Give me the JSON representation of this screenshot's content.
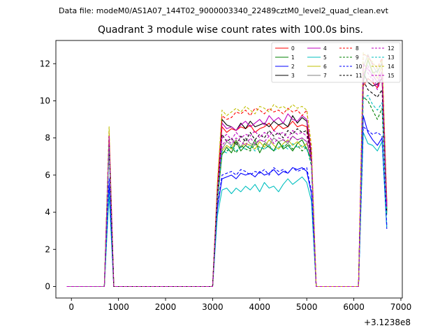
{
  "figure": {
    "suptitle": "Data file: modeM0/AS1A07_144T02_9000003340_22489cztM0_level2_quad_clean.evt"
  },
  "chart_data": {
    "type": "line",
    "title": "Quadrant 3 module wise count rates with 100.0s bins.",
    "xlabel": "",
    "ylabel": "",
    "x_offset_label": "+3.1238e8",
    "xlim": [
      -330,
      7030
    ],
    "ylim": [
      -0.62,
      13.25
    ],
    "xticks": [
      0,
      1000,
      2000,
      3000,
      4000,
      5000,
      6000,
      7000
    ],
    "xtick_labels": [
      "0",
      "1000",
      "2000",
      "3000",
      "4000",
      "5000",
      "6000",
      "7000"
    ],
    "yticks": [
      0,
      2,
      4,
      6,
      8,
      10,
      12
    ],
    "ytick_labels": [
      "0",
      "2",
      "4",
      "6",
      "8",
      "10",
      "12"
    ],
    "grid": false,
    "legend_position": "top-right",
    "legend_columns": 4,
    "x": [
      -100,
      0,
      100,
      200,
      300,
      400,
      500,
      600,
      700,
      800,
      900,
      1000,
      1100,
      1200,
      1300,
      1400,
      1500,
      1600,
      1700,
      1800,
      1900,
      2000,
      2100,
      2200,
      2300,
      2400,
      2500,
      2600,
      2700,
      2800,
      2900,
      3000,
      3100,
      3200,
      3300,
      3400,
      3500,
      3600,
      3700,
      3800,
      3900,
      4000,
      4100,
      4200,
      4300,
      4400,
      4500,
      4600,
      4700,
      4800,
      4900,
      5000,
      5100,
      5200,
      5300,
      5400,
      5500,
      5600,
      5700,
      5800,
      5900,
      6000,
      6100,
      6200,
      6300,
      6400,
      6500,
      6600,
      6700
    ],
    "series": [
      {
        "name": "0",
        "color": "#ff0000",
        "dash": "solid",
        "values": [
          0,
          0,
          0,
          0,
          0,
          0,
          0,
          0,
          0,
          8.0,
          0,
          0,
          0,
          0,
          0,
          0,
          0,
          0,
          0,
          0,
          0,
          0,
          0,
          0,
          0,
          0,
          0,
          0,
          0,
          0,
          0,
          0,
          5.0,
          8.6,
          8.3,
          8.5,
          8.4,
          8.6,
          8.5,
          8.7,
          8.3,
          8.5,
          8.6,
          8.8,
          8.4,
          8.7,
          8.5,
          8.6,
          8.9,
          8.6,
          8.7,
          8.6,
          7.0,
          0,
          0,
          0,
          0,
          0,
          0,
          0,
          0,
          0,
          0,
          10.8,
          11.2,
          11.0,
          10.7,
          11.3,
          4.0
        ]
      },
      {
        "name": "1",
        "color": "#008000",
        "dash": "solid",
        "values": [
          0,
          0,
          0,
          0,
          0,
          0,
          0,
          0,
          0,
          7.8,
          0,
          0,
          0,
          0,
          0,
          0,
          0,
          0,
          0,
          0,
          0,
          0,
          0,
          0,
          0,
          0,
          0,
          0,
          0,
          0,
          0,
          0,
          4.6,
          7.1,
          7.5,
          7.2,
          7.8,
          7.3,
          7.6,
          7.4,
          7.9,
          7.2,
          7.7,
          7.5,
          7.3,
          7.8,
          7.4,
          7.6,
          7.3,
          7.7,
          7.9,
          7.4,
          6.8,
          0,
          0,
          0,
          0,
          0,
          0,
          0,
          0,
          0,
          0,
          11.0,
          12.2,
          11.5,
          11.6,
          12.0,
          4.2
        ]
      },
      {
        "name": "2",
        "color": "#0000ff",
        "dash": "solid",
        "values": [
          0,
          0,
          0,
          0,
          0,
          0,
          0,
          0,
          0,
          5.5,
          0,
          0,
          0,
          0,
          0,
          0,
          0,
          0,
          0,
          0,
          0,
          0,
          0,
          0,
          0,
          0,
          0,
          0,
          0,
          0,
          0,
          0,
          4.2,
          5.8,
          5.9,
          6.0,
          5.8,
          6.1,
          6.0,
          6.1,
          5.9,
          6.2,
          6.0,
          6.1,
          6.3,
          6.0,
          6.2,
          6.1,
          6.4,
          6.3,
          6.4,
          6.2,
          5.0,
          0,
          0,
          0,
          0,
          0,
          0,
          0,
          0,
          0,
          0,
          9.2,
          8.3,
          7.9,
          7.6,
          8.0,
          3.1
        ]
      },
      {
        "name": "3",
        "color": "#000000",
        "dash": "solid",
        "values": [
          0,
          0,
          0,
          0,
          0,
          0,
          0,
          0,
          0,
          7.9,
          0,
          0,
          0,
          0,
          0,
          0,
          0,
          0,
          0,
          0,
          0,
          0,
          0,
          0,
          0,
          0,
          0,
          0,
          0,
          0,
          0,
          0,
          5.2,
          9.0,
          8.7,
          8.6,
          8.4,
          8.8,
          8.5,
          8.9,
          8.6,
          8.7,
          8.8,
          8.6,
          8.9,
          8.7,
          8.8,
          8.6,
          9.2,
          8.8,
          9.1,
          8.9,
          7.0,
          0,
          0,
          0,
          0,
          0,
          0,
          0,
          0,
          0,
          0,
          11.5,
          11.0,
          10.8,
          10.9,
          11.2,
          4.3
        ]
      },
      {
        "name": "4",
        "color": "#bf00bf",
        "dash": "solid",
        "values": [
          0,
          0,
          0,
          0,
          0,
          0,
          0,
          0,
          0,
          8.1,
          0,
          0,
          0,
          0,
          0,
          0,
          0,
          0,
          0,
          0,
          0,
          0,
          0,
          0,
          0,
          0,
          0,
          0,
          0,
          0,
          0,
          0,
          5.3,
          8.8,
          8.5,
          8.6,
          8.4,
          8.7,
          8.9,
          8.6,
          8.8,
          9.0,
          8.7,
          9.2,
          8.9,
          9.1,
          8.8,
          9.3,
          9.0,
          8.9,
          9.2,
          9.0,
          7.2,
          0,
          0,
          0,
          0,
          0,
          0,
          0,
          0,
          0,
          0,
          12.0,
          11.7,
          11.4,
          11.0,
          11.6,
          4.5
        ]
      },
      {
        "name": "5",
        "color": "#00bfbf",
        "dash": "solid",
        "values": [
          0,
          0,
          0,
          0,
          0,
          0,
          0,
          0,
          0,
          5.0,
          0,
          0,
          0,
          0,
          0,
          0,
          0,
          0,
          0,
          0,
          0,
          0,
          0,
          0,
          0,
          0,
          0,
          0,
          0,
          0,
          0,
          0,
          3.8,
          5.2,
          5.3,
          5.0,
          5.3,
          5.1,
          5.4,
          5.2,
          5.5,
          5.1,
          5.6,
          5.3,
          5.4,
          5.1,
          5.5,
          5.8,
          5.5,
          5.7,
          5.9,
          5.6,
          4.6,
          0,
          0,
          0,
          0,
          0,
          0,
          0,
          0,
          0,
          0,
          8.3,
          7.7,
          7.6,
          7.3,
          7.8,
          3.2
        ]
      },
      {
        "name": "6",
        "color": "#bfbf00",
        "dash": "solid",
        "values": [
          0,
          0,
          0,
          0,
          0,
          0,
          0,
          0,
          0,
          8.2,
          0,
          0,
          0,
          0,
          0,
          0,
          0,
          0,
          0,
          0,
          0,
          0,
          0,
          0,
          0,
          0,
          0,
          0,
          0,
          0,
          0,
          0,
          4.9,
          7.3,
          7.6,
          7.4,
          7.9,
          7.5,
          7.7,
          7.6,
          7.4,
          7.8,
          7.5,
          7.9,
          7.6,
          7.4,
          7.7,
          7.9,
          7.6,
          7.8,
          7.5,
          7.7,
          6.9,
          0,
          0,
          0,
          0,
          0,
          0,
          0,
          0,
          0,
          0,
          11.3,
          12.3,
          11.6,
          11.2,
          11.9,
          4.1
        ]
      },
      {
        "name": "7",
        "color": "#808080",
        "dash": "solid",
        "values": [
          0,
          0,
          0,
          0,
          0,
          0,
          0,
          0,
          0,
          7.7,
          0,
          0,
          0,
          0,
          0,
          0,
          0,
          0,
          0,
          0,
          0,
          0,
          0,
          0,
          0,
          0,
          0,
          0,
          0,
          0,
          0,
          0,
          5.0,
          7.4,
          7.8,
          7.6,
          7.9,
          7.5,
          8.0,
          7.7,
          7.6,
          7.9,
          7.8,
          7.6,
          8.0,
          7.8,
          7.9,
          7.7,
          8.1,
          7.9,
          8.0,
          7.8,
          6.8,
          0,
          0,
          0,
          0,
          0,
          0,
          0,
          0,
          0,
          0,
          11.8,
          12.5,
          11.9,
          11.5,
          12.1,
          4.4
        ]
      },
      {
        "name": "8",
        "color": "#ff0000",
        "dash": "dashed",
        "values": [
          0,
          0,
          0,
          0,
          0,
          0,
          0,
          0,
          0,
          8.3,
          0,
          0,
          0,
          0,
          0,
          0,
          0,
          0,
          0,
          0,
          0,
          0,
          0,
          0,
          0,
          0,
          0,
          0,
          0,
          0,
          0,
          0,
          5.4,
          9.2,
          9.0,
          9.1,
          9.4,
          9.3,
          9.5,
          9.2,
          9.6,
          9.5,
          9.3,
          9.6,
          9.4,
          9.5,
          9.3,
          9.6,
          9.4,
          9.5,
          9.2,
          9.5,
          7.4,
          0,
          0,
          0,
          0,
          0,
          0,
          0,
          0,
          0,
          0,
          12.5,
          12.4,
          12.0,
          11.8,
          12.3,
          4.6
        ]
      },
      {
        "name": "9",
        "color": "#008000",
        "dash": "dashed",
        "values": [
          0,
          0,
          0,
          0,
          0,
          0,
          0,
          0,
          0,
          7.6,
          0,
          0,
          0,
          0,
          0,
          0,
          0,
          0,
          0,
          0,
          0,
          0,
          0,
          0,
          0,
          0,
          0,
          0,
          0,
          0,
          0,
          0,
          4.7,
          7.2,
          7.3,
          7.5,
          7.2,
          7.6,
          7.4,
          7.3,
          7.7,
          7.5,
          7.4,
          7.6,
          7.3,
          7.8,
          7.5,
          7.7,
          7.4,
          7.6,
          7.3,
          7.5,
          6.5,
          0,
          0,
          0,
          0,
          0,
          0,
          0,
          0,
          0,
          0,
          10.2,
          10.0,
          9.5,
          9.0,
          9.6,
          3.8
        ]
      },
      {
        "name": "10",
        "color": "#0000ff",
        "dash": "dashed",
        "values": [
          0,
          0,
          0,
          0,
          0,
          0,
          0,
          0,
          0,
          5.8,
          0,
          0,
          0,
          0,
          0,
          0,
          0,
          0,
          0,
          0,
          0,
          0,
          0,
          0,
          0,
          0,
          0,
          0,
          0,
          0,
          0,
          0,
          4.3,
          6.0,
          6.1,
          6.2,
          6.0,
          6.3,
          6.2,
          6.0,
          6.2,
          6.1,
          6.3,
          6.0,
          6.4,
          6.2,
          6.3,
          6.1,
          6.4,
          6.2,
          6.3,
          6.4,
          5.1,
          0,
          0,
          0,
          0,
          0,
          0,
          0,
          0,
          0,
          0,
          8.6,
          8.4,
          8.2,
          8.3,
          8.1,
          3.3
        ]
      },
      {
        "name": "11",
        "color": "#000000",
        "dash": "dashed",
        "values": [
          0,
          0,
          0,
          0,
          0,
          0,
          0,
          0,
          0,
          7.7,
          0,
          0,
          0,
          0,
          0,
          0,
          0,
          0,
          0,
          0,
          0,
          0,
          0,
          0,
          0,
          0,
          0,
          0,
          0,
          0,
          0,
          0,
          4.9,
          8.2,
          7.8,
          8.0,
          7.6,
          8.1,
          7.8,
          8.3,
          7.9,
          8.2,
          8.0,
          8.4,
          8.1,
          8.3,
          8.0,
          8.4,
          8.2,
          8.5,
          8.3,
          8.4,
          6.7,
          0,
          0,
          0,
          0,
          0,
          0,
          0,
          0,
          0,
          0,
          11.1,
          10.6,
          10.4,
          10.2,
          10.6,
          4.0
        ]
      },
      {
        "name": "12",
        "color": "#bf00bf",
        "dash": "dashed",
        "values": [
          0,
          0,
          0,
          0,
          0,
          0,
          0,
          0,
          0,
          8.0,
          0,
          0,
          0,
          0,
          0,
          0,
          0,
          0,
          0,
          0,
          0,
          0,
          0,
          0,
          0,
          0,
          0,
          0,
          0,
          0,
          0,
          0,
          5.1,
          7.6,
          7.9,
          7.7,
          8.0,
          7.8,
          7.6,
          8.0,
          7.7,
          7.9,
          7.8,
          8.1,
          7.7,
          8.0,
          7.9,
          7.8,
          8.1,
          7.9,
          8.0,
          7.8,
          6.8,
          0,
          0,
          0,
          0,
          0,
          0,
          0,
          0,
          0,
          0,
          11.4,
          11.9,
          11.2,
          10.8,
          11.5,
          4.2
        ]
      },
      {
        "name": "13",
        "color": "#00bfbf",
        "dash": "dashed",
        "values": [
          0,
          0,
          0,
          0,
          0,
          0,
          0,
          0,
          0,
          7.5,
          0,
          0,
          0,
          0,
          0,
          0,
          0,
          0,
          0,
          0,
          0,
          0,
          0,
          0,
          0,
          0,
          0,
          0,
          0,
          0,
          0,
          0,
          4.7,
          7.3,
          7.2,
          7.6,
          7.3,
          7.5,
          7.4,
          7.6,
          7.3,
          7.5,
          7.4,
          7.6,
          7.3,
          7.5,
          7.6,
          7.4,
          7.7,
          7.5,
          7.6,
          7.4,
          6.6,
          0,
          0,
          0,
          0,
          0,
          0,
          0,
          0,
          0,
          0,
          10.1,
          10.3,
          9.8,
          9.5,
          9.9,
          3.9
        ]
      },
      {
        "name": "14",
        "color": "#bfbf00",
        "dash": "dashed",
        "values": [
          0,
          0,
          0,
          0,
          0,
          0,
          0,
          0,
          0,
          8.6,
          0,
          0,
          0,
          0,
          0,
          0,
          0,
          0,
          0,
          0,
          0,
          0,
          0,
          0,
          0,
          0,
          0,
          0,
          0,
          0,
          0,
          0,
          5.6,
          9.5,
          9.2,
          9.4,
          9.6,
          9.4,
          9.7,
          9.5,
          9.3,
          9.7,
          9.6,
          9.4,
          9.8,
          9.6,
          9.7,
          9.5,
          9.8,
          9.6,
          9.7,
          9.5,
          7.6,
          0,
          0,
          0,
          0,
          0,
          0,
          0,
          0,
          0,
          0,
          12.6,
          12.3,
          12.1,
          11.7,
          12.2,
          4.7
        ]
      },
      {
        "name": "15",
        "color": "#bf00bf",
        "dash": "dashed",
        "values": [
          0,
          0,
          0,
          0,
          0,
          0,
          0,
          0,
          0,
          8.1,
          0,
          0,
          0,
          0,
          0,
          0,
          0,
          0,
          0,
          0,
          0,
          0,
          0,
          0,
          0,
          0,
          0,
          0,
          0,
          0,
          0,
          0,
          5.0,
          8.0,
          8.2,
          7.9,
          8.3,
          8.0,
          8.2,
          8.1,
          8.4,
          8.0,
          8.3,
          8.1,
          8.4,
          8.2,
          8.3,
          8.0,
          8.4,
          8.2,
          8.3,
          8.1,
          6.9,
          0,
          0,
          0,
          0,
          0,
          0,
          0,
          0,
          0,
          0,
          11.9,
          11.5,
          11.1,
          10.6,
          11.3,
          4.3
        ]
      }
    ]
  }
}
